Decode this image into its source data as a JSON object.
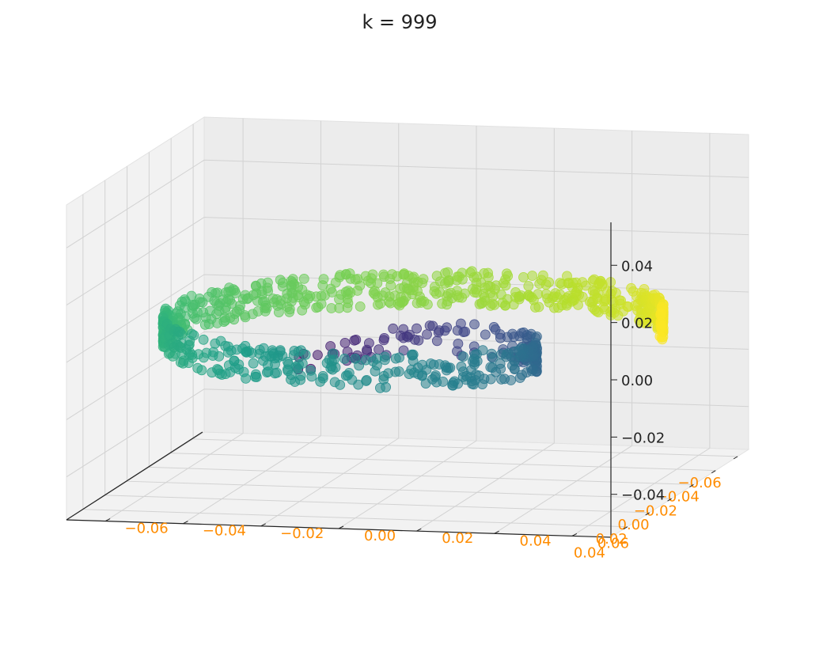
{
  "chart_data": {
    "type": "scatter",
    "title": "k = 999",
    "projection": "3d",
    "grid": true,
    "colormap": "viridis",
    "point_alpha": 0.55,
    "xlabel": "",
    "ylabel": "",
    "zlabel": "",
    "xlim": [
      -0.07,
      0.055
    ],
    "ylim": [
      -0.07,
      0.07
    ],
    "zlim": [
      -0.055,
      0.055
    ],
    "x_ticks": [
      "−0.06",
      "−0.04",
      "−0.02",
      "0.00",
      "0.02",
      "0.04"
    ],
    "y_ticks": [
      "−0.06",
      "−0.04",
      "−0.02",
      "0.00",
      "0.02",
      "0.04",
      "0.06"
    ],
    "z_ticks": [
      "−0.04",
      "−0.02",
      "0.00",
      "0.02",
      "0.04"
    ],
    "point_count": 999,
    "shape": "swiss roll, coloured by position along the roll (purple centre → yellow outer end)",
    "x_tick_color": "#ff8c00",
    "y_tick_color": "#ff8c00",
    "z_tick_color": "#222222"
  }
}
